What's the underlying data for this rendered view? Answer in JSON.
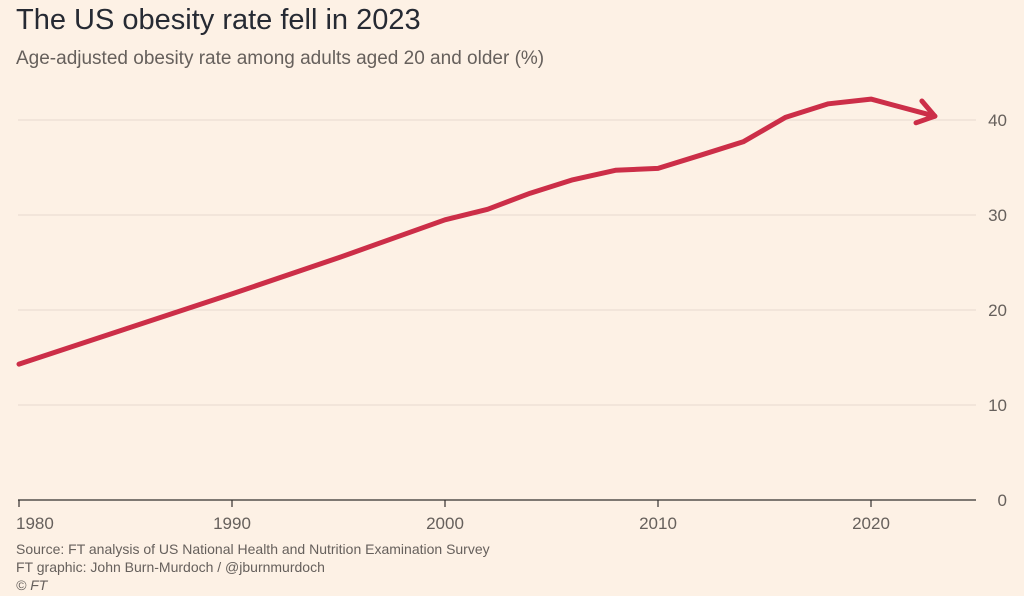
{
  "title": "The US obesity rate fell in 2023",
  "subtitle": "Age-adjusted obesity rate among adults aged 20 and older (%)",
  "footer": {
    "source": "Source: FT analysis of US National Health and Nutrition Examination Survey",
    "credit": "FT graphic: John Burn-Murdoch / @jburnmurdoch",
    "copyright": "© FT"
  },
  "colors": {
    "background": "#fdf1e5",
    "line": "#cc2e48",
    "grid": "#e6d9ce",
    "axis": "#33302e"
  },
  "chart_data": {
    "type": "line",
    "title": "The US obesity rate fell in 2023",
    "subtitle": "Age-adjusted obesity rate among adults aged 20 and older (%)",
    "xlabel": "",
    "ylabel": "",
    "xlim": [
      1980,
      2024
    ],
    "ylim": [
      0,
      42.5
    ],
    "x_ticks": [
      "1980",
      "1990",
      "2000",
      "2010",
      "2020"
    ],
    "y_ticks": [
      "0",
      "10",
      "20",
      "30",
      "40"
    ],
    "y_axis_side": "right",
    "grid": "horizontal",
    "end_marker": "arrow",
    "series": [
      {
        "x": [
          1980,
          1985,
          1990,
          1995,
          2000,
          2002,
          2004,
          2006,
          2008,
          2010,
          2012,
          2014,
          2016,
          2018,
          2020,
          2023
        ],
        "values": [
          14.3,
          18.0,
          21.7,
          25.5,
          29.5,
          30.6,
          32.3,
          33.7,
          34.7,
          34.9,
          36.3,
          37.7,
          40.3,
          41.7,
          42.2,
          40.4
        ]
      }
    ]
  }
}
